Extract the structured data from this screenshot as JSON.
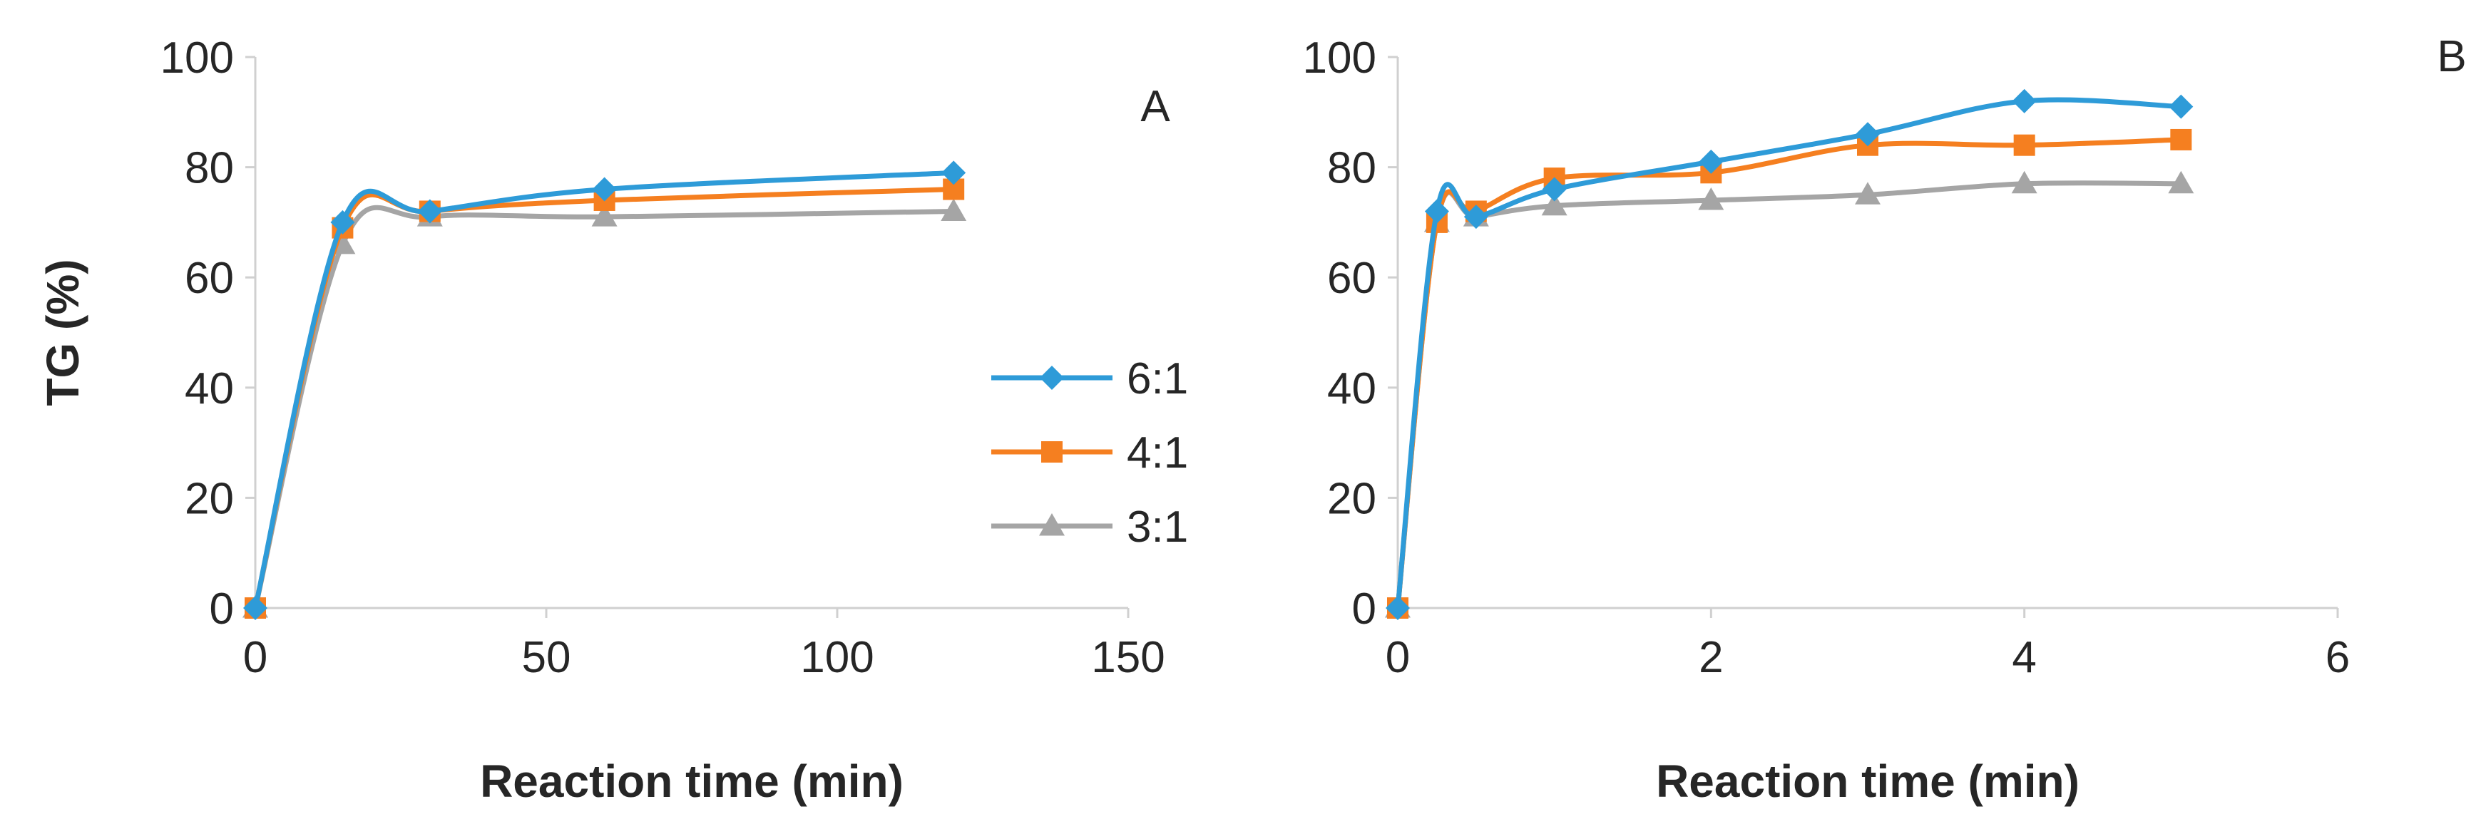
{
  "chart_data": [
    {
      "type": "line",
      "panel_label": "A",
      "title": "",
      "xlabel": "Reaction time (min)",
      "ylabel": "TG (%)",
      "xlim": [
        0,
        150
      ],
      "ylim": [
        0,
        100
      ],
      "x_ticks": [
        0,
        50,
        100,
        150
      ],
      "y_ticks": [
        0,
        20,
        40,
        60,
        80,
        100
      ],
      "x": [
        0,
        15,
        30,
        60,
        120
      ],
      "series": [
        {
          "name": "6:1",
          "values": [
            0,
            70,
            72,
            76,
            79
          ],
          "color": "#2e9bd8",
          "marker": "diamond"
        },
        {
          "name": "4:1",
          "values": [
            0,
            69,
            72,
            74,
            76
          ],
          "color": "#f57f20",
          "marker": "square"
        },
        {
          "name": "3:1",
          "values": [
            0,
            66,
            71,
            71,
            72
          ],
          "color": "#a5a5a5",
          "marker": "triangle"
        }
      ],
      "legend_position": "center-right"
    },
    {
      "type": "line",
      "panel_label": "B",
      "title": "",
      "xlabel": "Reaction time (min)",
      "ylabel": "",
      "xlim": [
        0,
        6
      ],
      "ylim": [
        0,
        100
      ],
      "x_ticks": [
        0,
        2,
        4,
        6
      ],
      "y_ticks": [
        0,
        20,
        40,
        60,
        80,
        100
      ],
      "x": [
        0,
        0.25,
        0.5,
        1,
        2,
        3,
        4,
        5
      ],
      "series": [
        {
          "name": "6:1",
          "values": [
            0,
            72,
            71,
            76,
            81,
            86,
            92,
            91
          ],
          "color": "#2e9bd8",
          "marker": "diamond"
        },
        {
          "name": "4:1",
          "values": [
            0,
            70,
            72,
            78,
            79,
            84,
            84,
            85
          ],
          "color": "#f57f20",
          "marker": "square"
        },
        {
          "name": "3:1",
          "values": [
            0,
            70,
            71,
            73,
            74,
            75,
            77,
            77
          ],
          "color": "#a5a5a5",
          "marker": "triangle"
        }
      ]
    }
  ]
}
